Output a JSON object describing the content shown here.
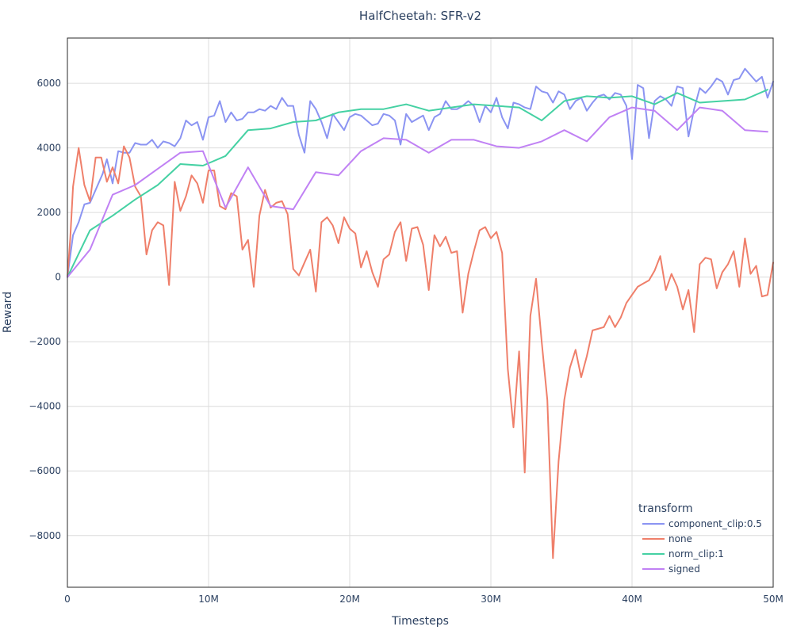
{
  "chart_data": {
    "type": "line",
    "title": "HalfCheetah: SFR-v2",
    "xlabel": "Timesteps",
    "ylabel": "Reward",
    "xlim": [
      0,
      50000000
    ],
    "ylim": [
      -9600,
      7400
    ],
    "grid": true,
    "x_ticks": [
      0,
      10000000,
      20000000,
      30000000,
      40000000,
      50000000
    ],
    "x_tick_labels": [
      "0",
      "10M",
      "20M",
      "30M",
      "40M",
      "50M"
    ],
    "y_ticks": [
      -8000,
      -6000,
      -4000,
      -2000,
      0,
      2000,
      4000,
      6000
    ],
    "y_tick_labels": [
      "−8000",
      "−6000",
      "−4000",
      "−2000",
      "0",
      "2000",
      "4000",
      "6000"
    ],
    "legend": {
      "title": "transform",
      "placement": "bottom-right"
    },
    "series": [
      {
        "name": "component_clip:0.5",
        "color": "#8b94f2",
        "x": [
          0,
          400000,
          800000,
          1200000,
          1600000,
          2000000,
          2500000,
          2800000,
          3200000,
          3600000,
          4000000,
          4400000,
          4800000,
          5200000,
          5600000,
          6000000,
          6400000,
          6800000,
          7200000,
          7600000,
          8000000,
          8400000,
          8800000,
          9200000,
          9600000,
          10000000,
          10400000,
          10800000,
          11200000,
          11600000,
          12000000,
          12400000,
          12800000,
          13200000,
          13600000,
          14000000,
          14400000,
          14800000,
          15200000,
          15600000,
          16000000,
          16400000,
          16800000,
          17200000,
          17600000,
          18000000,
          18400000,
          18800000,
          19200000,
          19600000,
          20000000,
          20400000,
          20800000,
          21200000,
          21600000,
          22000000,
          22400000,
          22800000,
          23200000,
          23600000,
          24000000,
          24400000,
          24800000,
          25200000,
          25600000,
          26000000,
          26400000,
          26800000,
          27200000,
          27600000,
          28000000,
          28400000,
          28800000,
          29200000,
          29600000,
          30000000,
          30400000,
          30800000,
          31200000,
          31600000,
          32000000,
          32400000,
          32800000,
          33200000,
          33600000,
          34000000,
          34400000,
          34800000,
          35200000,
          35600000,
          36000000,
          36400000,
          36800000,
          37200000,
          37600000,
          38000000,
          38400000,
          38800000,
          39200000,
          39600000,
          40000000,
          40400000,
          40800000,
          41200000,
          41600000,
          42000000,
          42400000,
          42800000,
          43200000,
          43600000,
          44000000,
          44400000,
          44800000,
          45200000,
          45600000,
          46000000,
          46400000,
          46800000,
          47200000,
          47600000,
          48000000,
          48400000,
          48800000,
          49200000,
          49600000,
          50000000
        ],
        "y": [
          0,
          1300,
          1700,
          2250,
          2300,
          2700,
          3200,
          3650,
          2900,
          3900,
          3850,
          3850,
          4150,
          4100,
          4100,
          4250,
          4000,
          4200,
          4150,
          4050,
          4300,
          4850,
          4700,
          4800,
          4250,
          4950,
          5000,
          5450,
          4800,
          5100,
          4850,
          4900,
          5100,
          5100,
          5200,
          5150,
          5300,
          5200,
          5550,
          5300,
          5300,
          4400,
          3850,
          5450,
          5200,
          4800,
          4300,
          5050,
          4800,
          4550,
          4950,
          5050,
          5000,
          4850,
          4700,
          4750,
          5050,
          5000,
          4850,
          4100,
          5050,
          4800,
          4900,
          5000,
          4550,
          4950,
          5050,
          5450,
          5200,
          5200,
          5300,
          5450,
          5300,
          4800,
          5300,
          5100,
          5550,
          4950,
          4600,
          5400,
          5350,
          5250,
          5200,
          5900,
          5750,
          5700,
          5400,
          5750,
          5650,
          5200,
          5450,
          5550,
          5150,
          5400,
          5600,
          5650,
          5500,
          5700,
          5650,
          5300,
          3650,
          5950,
          5850,
          4300,
          5450,
          5600,
          5500,
          5300,
          5900,
          5850,
          4350,
          5200,
          5850,
          5700,
          5900,
          6150,
          6050,
          5650,
          6100,
          6150,
          6450,
          6250,
          6050,
          6200,
          5550,
          6050
        ]
      },
      {
        "name": "none",
        "color": "#ef7f6a",
        "x": [
          0,
          200000,
          400000,
          800000,
          1200000,
          1600000,
          2000000,
          2400000,
          2800000,
          3200000,
          3600000,
          4000000,
          4400000,
          4800000,
          5200000,
          5600000,
          6000000,
          6400000,
          6800000,
          7200000,
          7600000,
          8000000,
          8400000,
          8800000,
          9200000,
          9600000,
          10000000,
          10400000,
          10800000,
          11200000,
          11600000,
          12000000,
          12400000,
          12800000,
          13200000,
          13600000,
          14000000,
          14400000,
          14800000,
          15200000,
          15600000,
          16000000,
          16400000,
          16800000,
          17200000,
          17600000,
          18000000,
          18400000,
          18800000,
          19200000,
          19600000,
          20000000,
          20400000,
          20800000,
          21200000,
          21600000,
          22000000,
          22400000,
          22800000,
          23200000,
          23600000,
          24000000,
          24400000,
          24800000,
          25200000,
          25600000,
          26000000,
          26400000,
          26800000,
          27200000,
          27600000,
          28000000,
          28400000,
          28800000,
          29200000,
          29600000,
          30000000,
          30400000,
          30800000,
          31200000,
          31600000,
          32000000,
          32400000,
          32800000,
          33200000,
          33600000,
          34000000,
          34400000,
          34800000,
          35200000,
          35600000,
          36000000,
          36400000,
          36800000,
          37200000,
          37600000,
          38000000,
          38400000,
          38800000,
          39200000,
          39600000,
          40000000,
          40400000,
          40800000,
          41200000,
          41600000,
          42000000,
          42400000,
          42800000,
          43200000,
          43600000,
          44000000,
          44400000,
          44800000,
          45200000,
          45600000,
          46000000,
          46400000,
          46800000,
          47200000,
          47600000,
          48000000,
          48400000,
          48800000,
          49200000,
          49600000,
          50000000
        ],
        "y": [
          0,
          1200,
          2800,
          4000,
          2850,
          2350,
          3700,
          3700,
          2950,
          3400,
          2900,
          4050,
          3700,
          2800,
          2500,
          700,
          1450,
          1700,
          1600,
          -250,
          2950,
          2050,
          2500,
          3150,
          2900,
          2300,
          3300,
          3300,
          2200,
          2100,
          2600,
          2500,
          850,
          1150,
          -300,
          1900,
          2700,
          2150,
          2300,
          2350,
          1950,
          250,
          50,
          450,
          850,
          -450,
          1700,
          1850,
          1600,
          1050,
          1850,
          1500,
          1350,
          300,
          800,
          150,
          -300,
          550,
          700,
          1400,
          1700,
          500,
          1500,
          1550,
          1000,
          -400,
          1300,
          950,
          1250,
          750,
          800,
          -1100,
          100,
          800,
          1450,
          1550,
          1200,
          1400,
          750,
          -2850,
          -4650,
          -2300,
          -6050,
          -1200,
          -50,
          -2000,
          -3800,
          -8700,
          -5700,
          -3800,
          -2800,
          -2250,
          -3100,
          -2450,
          -1650,
          -1600,
          -1550,
          -1200,
          -1550,
          -1250,
          -800,
          -550,
          -300,
          -200,
          -100,
          200,
          650,
          -400,
          100,
          -300,
          -1000,
          -400,
          -1700,
          400,
          600,
          550,
          -350,
          150,
          400,
          800,
          -300,
          1200,
          100,
          350,
          -600,
          -550,
          450
        ]
      },
      {
        "name": "norm_clip:1",
        "color": "#45d1a3",
        "x": [
          0,
          1600000,
          3200000,
          4800000,
          6400000,
          8000000,
          9600000,
          11200000,
          12800000,
          14400000,
          16000000,
          17600000,
          19200000,
          20800000,
          22400000,
          24000000,
          25600000,
          27200000,
          28800000,
          30400000,
          32000000,
          33600000,
          35200000,
          36800000,
          38400000,
          40000000,
          41600000,
          43200000,
          44800000,
          46400000,
          48000000,
          49600000
        ],
        "y": [
          0,
          1450,
          1900,
          2400,
          2850,
          3500,
          3450,
          3750,
          4550,
          4600,
          4800,
          4850,
          5100,
          5200,
          5200,
          5350,
          5150,
          5250,
          5350,
          5300,
          5250,
          4850,
          5450,
          5600,
          5550,
          5600,
          5350,
          5700,
          5400,
          5450,
          5500,
          5800
        ]
      },
      {
        "name": "signed",
        "color": "#c081f4",
        "x": [
          0,
          1600000,
          3200000,
          4800000,
          6400000,
          8000000,
          9600000,
          11200000,
          12800000,
          14400000,
          16000000,
          17600000,
          19200000,
          20800000,
          22400000,
          24000000,
          25600000,
          27200000,
          28800000,
          30400000,
          32000000,
          33600000,
          35200000,
          36800000,
          38400000,
          40000000,
          41600000,
          43200000,
          44800000,
          46400000,
          48000000,
          49600000
        ],
        "y": [
          0,
          850,
          2550,
          2850,
          3350,
          3850,
          3900,
          2150,
          3400,
          2200,
          2100,
          3250,
          3150,
          3900,
          4300,
          4250,
          3850,
          4250,
          4250,
          4050,
          4000,
          4200,
          4550,
          4200,
          4950,
          5250,
          5150,
          4550,
          5250,
          5150,
          4550,
          4500
        ]
      }
    ]
  }
}
